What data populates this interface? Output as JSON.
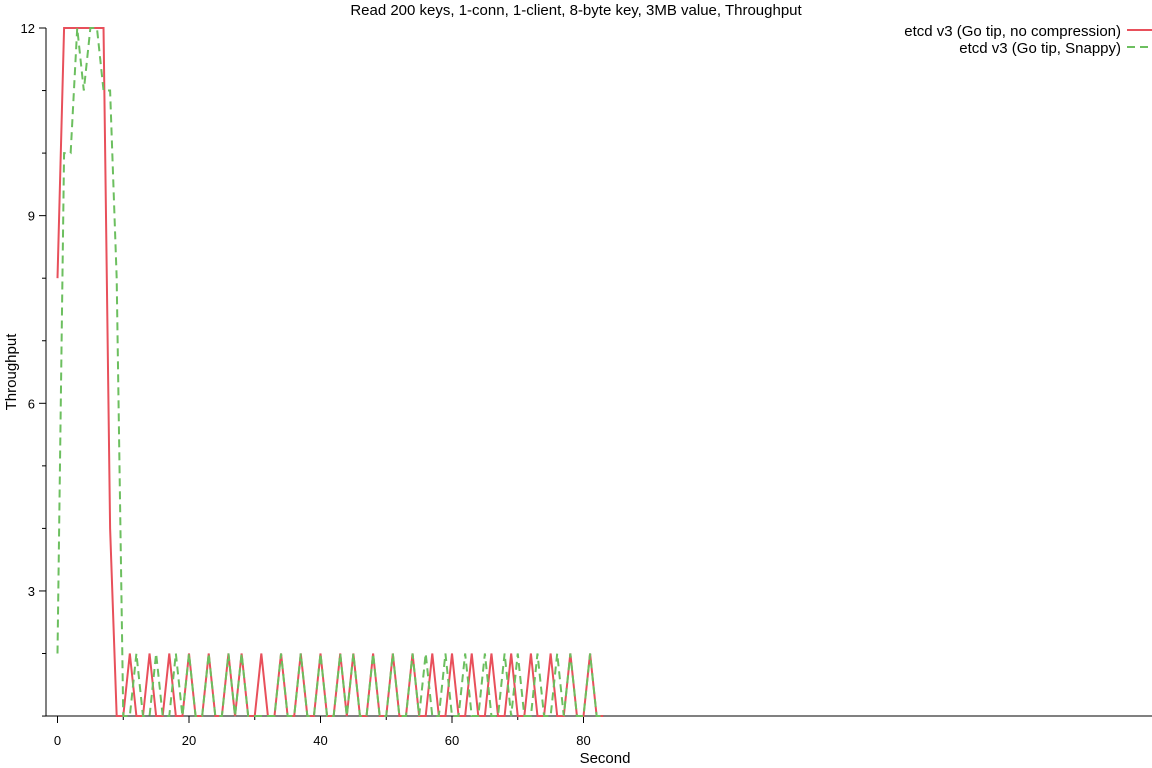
{
  "chart_data": {
    "type": "line",
    "title": "Read 200 keys, 1-conn, 1-client, 8-byte key, 3MB value, Throughput",
    "xlabel": "Second",
    "ylabel": "Throughput",
    "xlim": [
      0,
      83
    ],
    "ylim": [
      1,
      12
    ],
    "x_major_ticks": [
      0,
      20,
      40,
      60,
      80
    ],
    "x_minor_ticks": [
      10,
      30,
      50,
      70
    ],
    "y_major_ticks": [
      3,
      6,
      9,
      12
    ],
    "y_minor_ticks": [
      1,
      2,
      4,
      5,
      7,
      8,
      10,
      11
    ],
    "x_tick_labels": [
      "0",
      "20",
      "40",
      "60",
      "80"
    ],
    "y_tick_labels": [
      "3",
      "6",
      "9",
      "12"
    ],
    "grid": false,
    "legend_position": "top-right",
    "series": [
      {
        "name": "etcd v3 (Go tip, no compression)",
        "color": "#e8505b",
        "style": "solid",
        "x": [
          0,
          1,
          2,
          3,
          4,
          5,
          6,
          7,
          8,
          9,
          10,
          11,
          12,
          13,
          14,
          15,
          16,
          17,
          18,
          19,
          20,
          21,
          22,
          23,
          24,
          25,
          26,
          27,
          28,
          29,
          30,
          31,
          32,
          33,
          34,
          35,
          36,
          37,
          38,
          39,
          40,
          41,
          42,
          43,
          44,
          45,
          46,
          47,
          48,
          49,
          50,
          51,
          52,
          53,
          54,
          55,
          56,
          57,
          58,
          59,
          60,
          61,
          62,
          63,
          64,
          65,
          66,
          67,
          68,
          69,
          70,
          71,
          72,
          73,
          74,
          75,
          76,
          77,
          78,
          79,
          80,
          81,
          82,
          83
        ],
        "y": [
          8,
          12,
          12,
          12,
          12,
          12,
          12,
          12,
          4,
          1,
          1,
          2,
          1,
          1,
          2,
          1,
          1,
          2,
          1,
          1,
          2,
          1,
          1,
          2,
          1,
          1,
          2,
          1,
          2,
          1,
          1,
          2,
          1,
          1,
          2,
          1,
          1,
          2,
          1,
          1,
          2,
          1,
          1,
          2,
          1,
          2,
          1,
          1,
          2,
          1,
          1,
          2,
          1,
          1,
          2,
          1,
          1,
          2,
          1,
          1,
          2,
          1,
          1,
          2,
          1,
          1,
          2,
          1,
          1,
          2,
          1,
          1,
          2,
          1,
          1,
          2,
          1,
          1,
          2,
          1,
          1,
          2,
          1,
          1
        ]
      },
      {
        "name": "etcd v3 (Go tip, Snappy)",
        "color": "#6cbf5f",
        "style": "dashed",
        "x": [
          0,
          1,
          2,
          3,
          4,
          5,
          6,
          7,
          8,
          9,
          10,
          11,
          12,
          13,
          14,
          15,
          16,
          17,
          18,
          19,
          20,
          21,
          22,
          23,
          24,
          25,
          26,
          27,
          28,
          29,
          30,
          31,
          32,
          33,
          34,
          35,
          36,
          37,
          38,
          39,
          40,
          41,
          42,
          43,
          44,
          45,
          46,
          47,
          48,
          49,
          50,
          51,
          52,
          53,
          54,
          55,
          56,
          57,
          58,
          59,
          60,
          61,
          62,
          63,
          64,
          65,
          66,
          67,
          68,
          69,
          70,
          71,
          72,
          73,
          74,
          75,
          76,
          77,
          78,
          79,
          80,
          81,
          82,
          83
        ],
        "y": [
          2,
          10,
          10,
          12,
          11,
          12,
          12,
          11,
          11,
          8,
          1,
          1,
          2,
          1,
          1,
          2,
          1,
          1,
          2,
          1,
          2,
          1,
          1,
          2,
          1,
          1,
          2,
          1,
          2,
          1,
          1,
          1,
          1,
          1,
          2,
          1,
          1,
          2,
          1,
          1,
          2,
          1,
          1,
          2,
          1,
          2,
          1,
          1,
          2,
          1,
          1,
          2,
          1,
          1,
          2,
          1,
          2,
          1,
          1,
          2,
          1,
          1,
          2,
          1,
          1,
          2,
          1,
          1,
          2,
          1,
          2,
          1,
          1,
          2,
          1,
          1,
          2,
          1,
          2,
          1,
          1,
          2,
          1,
          1
        ]
      }
    ]
  }
}
